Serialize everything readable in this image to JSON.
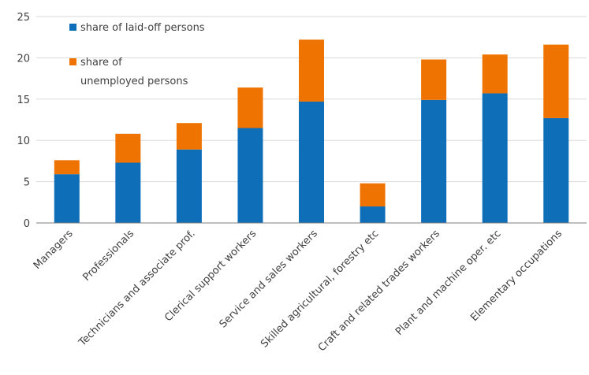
{
  "chart_data": {
    "type": "bar",
    "stacked": true,
    "categories": [
      "Managers",
      "Professionals",
      "Technicians and associate prof.",
      "Clerical support workers",
      "Service and sales workers",
      "Skilled agricultural, forestry etc",
      "Craft and related trades workers",
      "Plant and machine oper. etc",
      "Elementary occupations"
    ],
    "series": [
      {
        "name": "share of laid-off persons",
        "color": "#0E6EB8",
        "values": [
          5.9,
          7.3,
          8.9,
          11.5,
          14.7,
          2.0,
          14.9,
          15.7,
          12.7
        ]
      },
      {
        "name": "share of unemployed persons",
        "color": "#EE7300",
        "values": [
          1.7,
          3.5,
          3.2,
          4.9,
          7.5,
          2.8,
          4.9,
          4.7,
          8.9
        ]
      }
    ],
    "ylim": [
      0,
      25
    ],
    "yticks": [
      "0",
      "5",
      "10",
      "15",
      "20",
      "25"
    ],
    "grid": true,
    "legend_position": "top-left",
    "title": "",
    "xlabel": "",
    "ylabel": ""
  }
}
